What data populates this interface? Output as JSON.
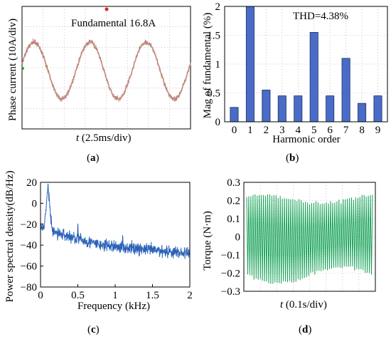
{
  "panels": {
    "a": "a",
    "b": "b",
    "c": "c",
    "d": "d"
  },
  "chart_data": [
    {
      "id": "a",
      "type": "line",
      "annotation": "Fundamental 16.8A",
      "ylabel": "Phase current (10A/div)",
      "xlabel_var": "t",
      "xlabel_rest": " (2.5ms/div)",
      "x_divisions": 8,
      "y_divisions": 6,
      "grid": true,
      "series": [
        {
          "amplitude_div": 1.4,
          "periods": 3,
          "phase_div": 0.0,
          "color": "#b97a6e"
        }
      ]
    },
    {
      "id": "b",
      "type": "bar",
      "annotation": "THD=4.38%",
      "xlabel": "Harmonic order",
      "ylabel": "Mag of fundamental (%)",
      "categories": [
        "0",
        "1",
        "2",
        "3",
        "4",
        "5",
        "6",
        "7",
        "8",
        "9"
      ],
      "values": [
        0.25,
        2.0,
        0.55,
        0.45,
        0.45,
        1.55,
        0.45,
        1.1,
        0.32,
        0.45
      ],
      "ylim": [
        0,
        2
      ],
      "yticks": [
        "0",
        "0.5",
        "1",
        "1.5",
        "2"
      ],
      "grid": true,
      "color": "#4a6cc4"
    },
    {
      "id": "c",
      "type": "line",
      "xlabel": "Frequency (kHz)",
      "ylabel": "Power spectral density(dB/Hz)",
      "xlim": [
        0,
        2
      ],
      "ylim": [
        -80,
        20
      ],
      "xticks": [
        "0",
        "0.5",
        "1",
        "1.5",
        "2"
      ],
      "yticks": [
        "20",
        "0",
        "-20",
        "-40",
        "-60",
        "-80"
      ],
      "peaks": [
        {
          "x": 0.1,
          "y": 16
        },
        {
          "x": 0.5,
          "y": -17
        },
        {
          "x": 1.1,
          "y": -30
        }
      ],
      "color": "#2b62b8"
    },
    {
      "id": "d",
      "type": "line",
      "xlabel_var": "t",
      "xlabel_rest": " (0.1s/div)",
      "ylabel": "Torque (N·m)",
      "ylim": [
        -0.3,
        0.3
      ],
      "yticks": [
        "0.3",
        "0.2",
        "0.1",
        "0",
        "-0.1",
        "-0.2",
        "-0.3"
      ],
      "grid": true,
      "color": "#1aa35a"
    }
  ]
}
